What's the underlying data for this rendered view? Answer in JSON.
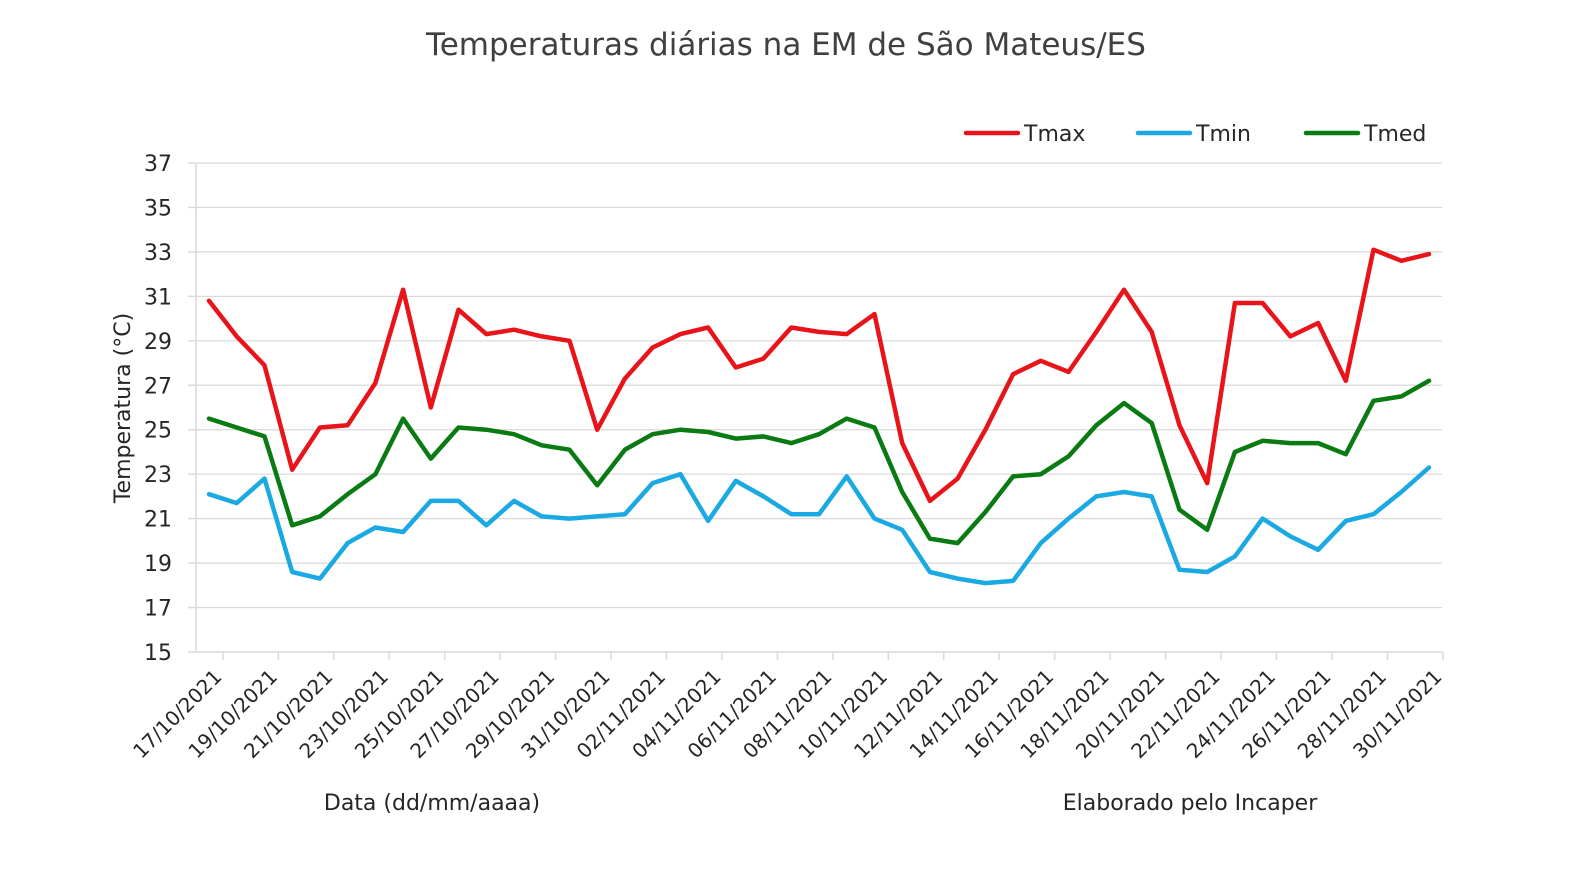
{
  "chart_data": {
    "type": "line",
    "title": "Temperaturas diárias na EM de São Mateus/ES",
    "xlabel": "Data (dd/mm/aaaa)",
    "ylabel": "Temperatura (°C)",
    "source_note": "Elaborado pelo Incaper",
    "ylim": [
      15,
      37
    ],
    "yticks": [
      15,
      17,
      19,
      21,
      23,
      25,
      27,
      29,
      31,
      33,
      35,
      37
    ],
    "grid": true,
    "legend_position": "top-right",
    "x": [
      "17/10/2021",
      "18/10/2021",
      "19/10/2021",
      "20/10/2021",
      "21/10/2021",
      "22/10/2021",
      "23/10/2021",
      "24/10/2021",
      "25/10/2021",
      "26/10/2021",
      "27/10/2021",
      "28/10/2021",
      "29/10/2021",
      "30/10/2021",
      "31/10/2021",
      "01/11/2021",
      "02/11/2021",
      "03/11/2021",
      "04/11/2021",
      "05/11/2021",
      "06/11/2021",
      "07/11/2021",
      "08/11/2021",
      "09/11/2021",
      "10/11/2021",
      "11/11/2021",
      "12/11/2021",
      "13/11/2021",
      "14/11/2021",
      "15/11/2021",
      "16/11/2021",
      "17/11/2021",
      "18/11/2021",
      "19/11/2021",
      "20/11/2021",
      "21/11/2021",
      "22/11/2021",
      "23/11/2021",
      "24/11/2021",
      "25/11/2021",
      "26/11/2021",
      "27/11/2021",
      "28/11/2021",
      "29/11/2021",
      "30/11/2021"
    ],
    "x_tick_labels": [
      "17/10/2021",
      "19/10/2021",
      "21/10/2021",
      "23/10/2021",
      "25/10/2021",
      "27/10/2021",
      "29/10/2021",
      "31/10/2021",
      "02/11/2021",
      "04/11/2021",
      "06/11/2021",
      "08/11/2021",
      "10/11/2021",
      "12/11/2021",
      "14/11/2021",
      "16/11/2021",
      "18/11/2021",
      "20/11/2021",
      "22/11/2021",
      "24/11/2021",
      "26/11/2021",
      "28/11/2021",
      "30/11/2021"
    ],
    "series": [
      {
        "name": "Tmax",
        "color": "#e8141a",
        "values": [
          30.8,
          29.2,
          27.9,
          23.2,
          25.1,
          25.2,
          27.1,
          31.3,
          26.0,
          30.4,
          29.3,
          29.5,
          29.2,
          29.0,
          25.0,
          27.3,
          28.7,
          29.3,
          29.6,
          27.8,
          28.2,
          29.6,
          29.4,
          29.3,
          30.2,
          24.4,
          21.8,
          22.8,
          25.0,
          27.5,
          28.1,
          27.6,
          29.4,
          31.3,
          29.4,
          25.2,
          22.6,
          30.7,
          30.7,
          29.2,
          29.8,
          27.2,
          33.1,
          32.6,
          32.9
        ]
      },
      {
        "name": "Tmin",
        "color": "#1aa9e2",
        "values": [
          22.1,
          21.7,
          22.8,
          18.6,
          18.3,
          19.9,
          20.6,
          20.4,
          21.8,
          21.8,
          20.7,
          21.8,
          21.1,
          21.0,
          21.1,
          21.2,
          22.6,
          23.0,
          20.9,
          22.7,
          22.0,
          21.2,
          21.2,
          22.9,
          21.0,
          20.5,
          18.6,
          18.3,
          18.1,
          18.2,
          19.9,
          21.0,
          22.0,
          22.2,
          22.0,
          18.7,
          18.6,
          19.3,
          21.0,
          20.2,
          19.6,
          20.9,
          21.2,
          22.2,
          23.3
        ]
      },
      {
        "name": "Tmed",
        "color": "#0a7a12",
        "values": [
          25.5,
          25.1,
          24.7,
          20.7,
          21.1,
          22.1,
          23.0,
          25.5,
          23.7,
          25.1,
          25.0,
          24.8,
          24.3,
          24.1,
          22.5,
          24.1,
          24.8,
          25.0,
          24.9,
          24.6,
          24.7,
          24.4,
          24.8,
          25.5,
          25.1,
          22.2,
          20.1,
          19.9,
          21.3,
          22.9,
          23.0,
          23.8,
          25.2,
          26.2,
          25.3,
          21.4,
          20.5,
          24.0,
          24.5,
          24.4,
          24.4,
          23.9,
          26.3,
          26.5,
          27.2
        ]
      }
    ]
  }
}
